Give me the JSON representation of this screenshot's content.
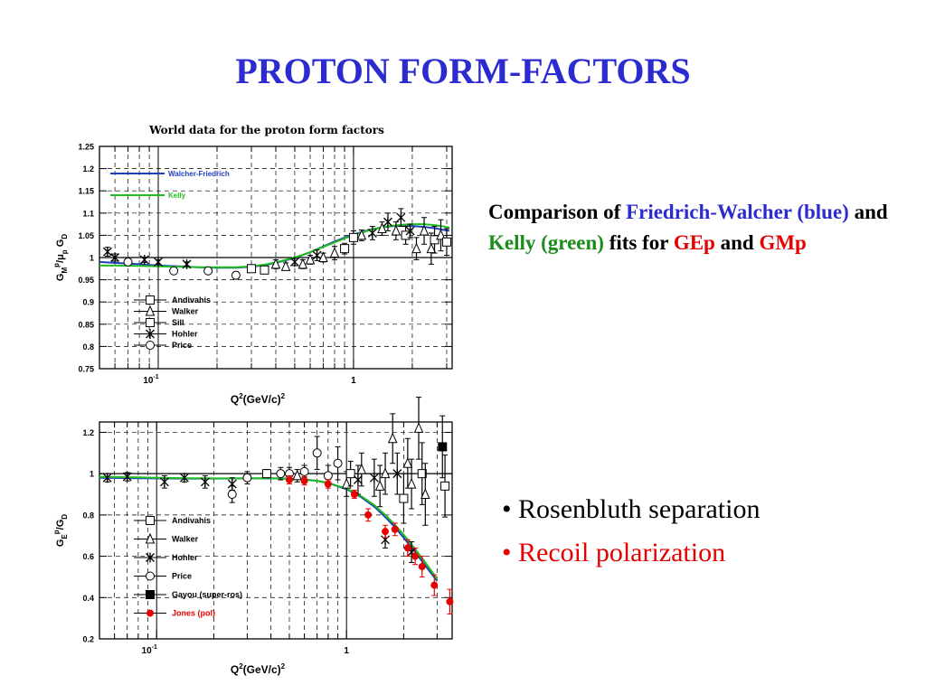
{
  "slide": {
    "title": "PROTON  FORM-FACTORS"
  },
  "comparison": {
    "p1": "Comparison of ",
    "friedrich": "Friedrich-Walcher (blue)",
    "p2": " and ",
    "kelly": "Kelly (green)",
    "p3": " fits for ",
    "gep": "GEp",
    "p4": " and ",
    "gmp": "GMp"
  },
  "bullets": [
    {
      "text": "• Rosenbluth separation",
      "color": "#000000"
    },
    {
      "text": "• Recoil polarization",
      "color": "#e60000"
    }
  ],
  "colors": {
    "blue": "#2b2bcf",
    "green": "#1a8c1a",
    "red": "#e60000"
  },
  "chart_data": [
    {
      "type": "scatter",
      "title": "World data for the proton form factors",
      "xlabel": "Q^2(GeV/c)^2",
      "ylabel": "G_M^p/μ_p G_D",
      "xscale": "log",
      "xlim": [
        0.05,
        3.2
      ],
      "ylim": [
        0.75,
        1.25
      ],
      "yticks": [
        "0.75",
        "0.8",
        "0.85",
        "0.9",
        "0.95",
        "1",
        "1.05",
        "1.1",
        "1.15",
        "1.2",
        "1.25"
      ],
      "xticks": [
        {
          "value": 0.1,
          "label": "10-1"
        },
        {
          "value": 1,
          "label": "1"
        }
      ],
      "grid": true,
      "fit_legend": [
        {
          "name": "Walcher-Friedrich",
          "color": "#1f3fbf"
        },
        {
          "name": "Kelly",
          "color": "#1fbf1f"
        }
      ],
      "marker_legend": [
        {
          "name": "Andivahis",
          "marker": "square"
        },
        {
          "name": "Walker",
          "marker": "triangle"
        },
        {
          "name": "Sill",
          "marker": "square"
        },
        {
          "name": "Hohler",
          "marker": "star"
        },
        {
          "name": "Price",
          "marker": "circle"
        }
      ],
      "fits": [
        {
          "name": "Walcher-Friedrich",
          "color": "#1f3fbf",
          "x": [
            0.05,
            0.06,
            0.08,
            0.1,
            0.13,
            0.16,
            0.2,
            0.25,
            0.3,
            0.35,
            0.4,
            0.5,
            0.6,
            0.7,
            0.8,
            0.9,
            1.0,
            1.2,
            1.4,
            1.6,
            1.8,
            2.0,
            2.3,
            2.6,
            2.9,
            3.1
          ],
          "y": [
            0.99,
            0.988,
            0.985,
            0.982,
            0.98,
            0.978,
            0.977,
            0.977,
            0.979,
            0.983,
            0.988,
            0.999,
            1.012,
            1.025,
            1.036,
            1.045,
            1.052,
            1.062,
            1.068,
            1.071,
            1.072,
            1.071,
            1.069,
            1.066,
            1.062,
            1.06
          ]
        },
        {
          "name": "Kelly",
          "color": "#1fbf1f",
          "x": [
            0.05,
            0.06,
            0.08,
            0.1,
            0.13,
            0.16,
            0.2,
            0.25,
            0.3,
            0.35,
            0.4,
            0.5,
            0.6,
            0.7,
            0.8,
            0.9,
            1.0,
            1.2,
            1.4,
            1.6,
            1.8,
            2.0,
            2.3,
            2.6,
            2.9,
            3.1
          ],
          "y": [
            0.982,
            0.982,
            0.981,
            0.98,
            0.979,
            0.978,
            0.978,
            0.978,
            0.98,
            0.984,
            0.989,
            1.0,
            1.012,
            1.024,
            1.034,
            1.043,
            1.05,
            1.061,
            1.068,
            1.072,
            1.074,
            1.075,
            1.075,
            1.073,
            1.07,
            1.067
          ]
        }
      ],
      "points": [
        {
          "x": 0.055,
          "y": 1.013,
          "err": 0.01,
          "marker": "star"
        },
        {
          "x": 0.06,
          "y": 1.0,
          "err": 0.008,
          "marker": "star"
        },
        {
          "x": 0.07,
          "y": 0.99,
          "err": 0.006,
          "marker": "circle"
        },
        {
          "x": 0.085,
          "y": 0.995,
          "err": 0.006,
          "marker": "star"
        },
        {
          "x": 0.1,
          "y": 0.99,
          "err": 0.005,
          "marker": "star"
        },
        {
          "x": 0.12,
          "y": 0.97,
          "err": 0.005,
          "marker": "circle"
        },
        {
          "x": 0.14,
          "y": 0.985,
          "err": 0.005,
          "marker": "star"
        },
        {
          "x": 0.18,
          "y": 0.97,
          "err": 0.005,
          "marker": "circle"
        },
        {
          "x": 0.25,
          "y": 0.96,
          "err": 0.008,
          "marker": "circle"
        },
        {
          "x": 0.3,
          "y": 0.975,
          "err": 0.006,
          "marker": "square"
        },
        {
          "x": 0.35,
          "y": 0.972,
          "err": 0.006,
          "marker": "square"
        },
        {
          "x": 0.4,
          "y": 0.985,
          "err": 0.01,
          "marker": "triangle"
        },
        {
          "x": 0.45,
          "y": 0.98,
          "err": 0.008,
          "marker": "triangle"
        },
        {
          "x": 0.5,
          "y": 0.99,
          "err": 0.008,
          "marker": "star"
        },
        {
          "x": 0.55,
          "y": 0.985,
          "err": 0.01,
          "marker": "triangle"
        },
        {
          "x": 0.6,
          "y": 0.995,
          "err": 0.01,
          "marker": "triangle"
        },
        {
          "x": 0.65,
          "y": 1.005,
          "err": 0.012,
          "marker": "star"
        },
        {
          "x": 0.7,
          "y": 1.0,
          "err": 0.01,
          "marker": "triangle"
        },
        {
          "x": 0.8,
          "y": 1.01,
          "err": 0.015,
          "marker": "triangle"
        },
        {
          "x": 0.9,
          "y": 1.02,
          "err": 0.012,
          "marker": "square"
        },
        {
          "x": 1.0,
          "y": 1.045,
          "err": 0.015,
          "marker": "square"
        },
        {
          "x": 1.1,
          "y": 1.05,
          "err": 0.012,
          "marker": "triangle"
        },
        {
          "x": 1.25,
          "y": 1.055,
          "err": 0.015,
          "marker": "star"
        },
        {
          "x": 1.4,
          "y": 1.065,
          "err": 0.015,
          "marker": "triangle"
        },
        {
          "x": 1.5,
          "y": 1.08,
          "err": 0.02,
          "marker": "star"
        },
        {
          "x": 1.65,
          "y": 1.06,
          "err": 0.02,
          "marker": "triangle"
        },
        {
          "x": 1.75,
          "y": 1.09,
          "err": 0.02,
          "marker": "star"
        },
        {
          "x": 1.85,
          "y": 1.05,
          "err": 0.02,
          "marker": "square"
        },
        {
          "x": 1.95,
          "y": 1.06,
          "err": 0.015,
          "marker": "star"
        },
        {
          "x": 2.1,
          "y": 1.02,
          "err": 0.025,
          "marker": "triangle"
        },
        {
          "x": 2.3,
          "y": 1.06,
          "err": 0.03,
          "marker": "triangle"
        },
        {
          "x": 2.5,
          "y": 1.02,
          "err": 0.035,
          "marker": "triangle"
        },
        {
          "x": 2.6,
          "y": 1.04,
          "err": 0.03,
          "marker": "square"
        },
        {
          "x": 2.8,
          "y": 1.05,
          "err": 0.035,
          "marker": "triangle"
        },
        {
          "x": 3.0,
          "y": 1.035,
          "err": 0.03,
          "marker": "square"
        }
      ]
    },
    {
      "type": "scatter",
      "title": "",
      "xlabel": "Q^2(GeV/c)^2",
      "ylabel": "G_E^p/G_D",
      "xscale": "log",
      "xlim": [
        0.05,
        3.6
      ],
      "ylim": [
        0.2,
        1.25
      ],
      "yticks": [
        "0.2",
        "0.4",
        "0.6",
        "0.8",
        "1",
        "1.2"
      ],
      "xticks": [
        {
          "value": 0.1,
          "label": "10-1"
        },
        {
          "value": 1,
          "label": "1"
        }
      ],
      "grid": true,
      "marker_legend": [
        {
          "name": "Andivahis",
          "marker": "square"
        },
        {
          "name": "Walker",
          "marker": "triangle"
        },
        {
          "name": "Hohler",
          "marker": "star"
        },
        {
          "name": "Price",
          "marker": "circle"
        },
        {
          "name": "Gayou (super-ros)",
          "marker": "square-filled"
        },
        {
          "name": "Jones (pol)",
          "marker": "dot-red"
        }
      ],
      "fits": [
        {
          "name": "Walcher-Friedrich",
          "color": "#1f3fbf",
          "x": [
            0.05,
            0.08,
            0.1,
            0.15,
            0.2,
            0.3,
            0.4,
            0.5,
            0.6,
            0.7,
            0.8,
            1.0,
            1.2,
            1.4,
            1.6,
            1.8,
            2.0,
            2.3,
            2.6,
            3.0
          ],
          "y": [
            0.98,
            0.978,
            0.977,
            0.976,
            0.976,
            0.977,
            0.978,
            0.976,
            0.972,
            0.965,
            0.955,
            0.925,
            0.885,
            0.84,
            0.79,
            0.74,
            0.69,
            0.62,
            0.555,
            0.48
          ]
        },
        {
          "name": "Kelly",
          "color": "#1fbf1f",
          "x": [
            0.05,
            0.08,
            0.1,
            0.15,
            0.2,
            0.3,
            0.4,
            0.5,
            0.6,
            0.7,
            0.8,
            1.0,
            1.2,
            1.4,
            1.6,
            1.8,
            2.0,
            2.3,
            2.6,
            3.0
          ],
          "y": [
            0.985,
            0.982,
            0.98,
            0.978,
            0.977,
            0.977,
            0.977,
            0.975,
            0.971,
            0.964,
            0.955,
            0.928,
            0.89,
            0.848,
            0.8,
            0.752,
            0.705,
            0.635,
            0.57,
            0.49
          ]
        }
      ],
      "points": [
        {
          "x": 0.055,
          "y": 0.98,
          "err": 0.02,
          "marker": "star"
        },
        {
          "x": 0.07,
          "y": 0.985,
          "err": 0.02,
          "marker": "star"
        },
        {
          "x": 0.11,
          "y": 0.96,
          "err": 0.03,
          "marker": "star"
        },
        {
          "x": 0.14,
          "y": 0.98,
          "err": 0.02,
          "marker": "star"
        },
        {
          "x": 0.18,
          "y": 0.96,
          "err": 0.03,
          "marker": "star"
        },
        {
          "x": 0.25,
          "y": 0.9,
          "err": 0.04,
          "marker": "circle"
        },
        {
          "x": 0.25,
          "y": 0.95,
          "err": 0.03,
          "marker": "star"
        },
        {
          "x": 0.3,
          "y": 0.98,
          "err": 0.03,
          "marker": "circle"
        },
        {
          "x": 0.38,
          "y": 1.0,
          "err": 0.02,
          "marker": "square"
        },
        {
          "x": 0.45,
          "y": 1.0,
          "err": 0.03,
          "marker": "circle"
        },
        {
          "x": 0.5,
          "y": 1.0,
          "err": 0.03,
          "marker": "circle"
        },
        {
          "x": 0.55,
          "y": 0.99,
          "err": 0.03,
          "marker": "triangle"
        },
        {
          "x": 0.6,
          "y": 1.01,
          "err": 0.03,
          "marker": "circle"
        },
        {
          "x": 0.7,
          "y": 1.1,
          "err": 0.08,
          "marker": "circle"
        },
        {
          "x": 0.8,
          "y": 0.99,
          "err": 0.05,
          "marker": "circle"
        },
        {
          "x": 0.9,
          "y": 1.05,
          "err": 0.08,
          "marker": "circle"
        },
        {
          "x": 1.0,
          "y": 0.95,
          "err": 0.06,
          "marker": "triangle"
        },
        {
          "x": 1.05,
          "y": 1.0,
          "err": 0.06,
          "marker": "square"
        },
        {
          "x": 1.15,
          "y": 0.97,
          "err": 0.07,
          "marker": "star"
        },
        {
          "x": 1.2,
          "y": 1.02,
          "err": 0.08,
          "marker": "triangle"
        },
        {
          "x": 1.4,
          "y": 0.98,
          "err": 0.09,
          "marker": "star"
        },
        {
          "x": 1.5,
          "y": 0.94,
          "err": 0.1,
          "marker": "triangle"
        },
        {
          "x": 1.6,
          "y": 1.0,
          "err": 0.1,
          "marker": "triangle"
        },
        {
          "x": 1.75,
          "y": 1.17,
          "err": 0.12,
          "marker": "triangle"
        },
        {
          "x": 1.85,
          "y": 1.0,
          "err": 0.1,
          "marker": "star"
        },
        {
          "x": 2.0,
          "y": 0.88,
          "err": 0.12,
          "marker": "square"
        },
        {
          "x": 2.1,
          "y": 1.05,
          "err": 0.12,
          "marker": "triangle"
        },
        {
          "x": 2.2,
          "y": 0.95,
          "err": 0.12,
          "marker": "triangle"
        },
        {
          "x": 2.4,
          "y": 1.22,
          "err": 0.15,
          "marker": "triangle"
        },
        {
          "x": 2.5,
          "y": 1.0,
          "err": 0.15,
          "marker": "square"
        },
        {
          "x": 2.6,
          "y": 0.9,
          "err": 0.15,
          "marker": "triangle"
        },
        {
          "x": 1.6,
          "y": 0.68,
          "err": 0.04,
          "marker": "star"
        },
        {
          "x": 2.2,
          "y": 0.62,
          "err": 0.05,
          "marker": "star"
        },
        {
          "x": 3.2,
          "y": 1.13,
          "err": 0.15,
          "marker": "square-filled"
        },
        {
          "x": 3.3,
          "y": 0.94,
          "err": 0.15,
          "marker": "square"
        },
        {
          "x": 0.5,
          "y": 0.97,
          "err": 0.02,
          "marker": "dot-red"
        },
        {
          "x": 0.6,
          "y": 0.965,
          "err": 0.02,
          "marker": "dot-red"
        },
        {
          "x": 0.8,
          "y": 0.95,
          "err": 0.02,
          "marker": "dot-red"
        },
        {
          "x": 1.1,
          "y": 0.9,
          "err": 0.02,
          "marker": "dot-red"
        },
        {
          "x": 1.3,
          "y": 0.8,
          "err": 0.03,
          "marker": "dot-red"
        },
        {
          "x": 1.6,
          "y": 0.72,
          "err": 0.03,
          "marker": "dot-red"
        },
        {
          "x": 1.8,
          "y": 0.73,
          "err": 0.03,
          "marker": "dot-red"
        },
        {
          "x": 2.1,
          "y": 0.64,
          "err": 0.04,
          "marker": "dot-red"
        },
        {
          "x": 2.3,
          "y": 0.6,
          "err": 0.04,
          "marker": "dot-red"
        },
        {
          "x": 2.5,
          "y": 0.55,
          "err": 0.05,
          "marker": "dot-red"
        },
        {
          "x": 2.9,
          "y": 0.46,
          "err": 0.05,
          "marker": "dot-red"
        },
        {
          "x": 3.5,
          "y": 0.38,
          "err": 0.06,
          "marker": "dot-red"
        }
      ]
    }
  ]
}
